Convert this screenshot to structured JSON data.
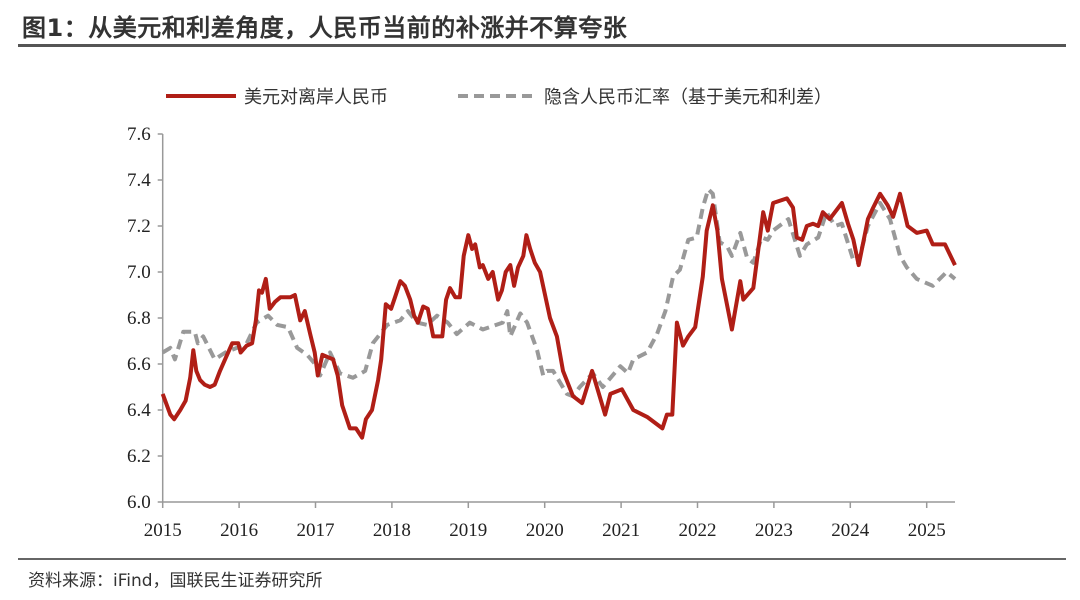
{
  "header": {
    "title": "图1：从美元和利差角度，人民币当前的补涨并不算夸张"
  },
  "footer": {
    "source": "资料来源：iFind，国联民生证券研究所"
  },
  "chart_data": {
    "type": "line",
    "title": "",
    "xlabel": "",
    "ylabel": "",
    "xlim": [
      2015,
      2025.4
    ],
    "ylim": [
      6.0,
      7.6
    ],
    "x_ticks": [
      "2015",
      "2016",
      "2017",
      "2018",
      "2019",
      "2020",
      "2021",
      "2022",
      "2023",
      "2024",
      "2025"
    ],
    "y_ticks": [
      "6.0",
      "6.2",
      "6.4",
      "6.6",
      "6.8",
      "7.0",
      "7.2",
      "7.4",
      "7.6"
    ],
    "grid": false,
    "legend_position": "top",
    "series": [
      {
        "name": "美元对离岸人民币",
        "color": "#b01e16",
        "style": "solid",
        "x": [
          2015.0,
          2015.1,
          2015.15,
          2015.23,
          2015.3,
          2015.36,
          2015.4,
          2015.44,
          2015.49,
          2015.55,
          2015.62,
          2015.68,
          2015.75,
          2015.83,
          2015.91,
          2015.99,
          2016.02,
          2016.1,
          2016.17,
          2016.22,
          2016.26,
          2016.3,
          2016.35,
          2016.4,
          2016.47,
          2016.54,
          2016.67,
          2016.73,
          2016.8,
          2016.86,
          2016.93,
          2016.99,
          2017.03,
          2017.09,
          2017.16,
          2017.23,
          2017.29,
          2017.35,
          2017.45,
          2017.53,
          2017.61,
          2017.66,
          2017.74,
          2017.82,
          2017.86,
          2017.92,
          2017.99,
          2018.04,
          2018.11,
          2018.17,
          2018.24,
          2018.29,
          2018.34,
          2018.41,
          2018.47,
          2018.54,
          2018.59,
          2018.66,
          2018.71,
          2018.76,
          2018.83,
          2018.89,
          2018.94,
          2019.0,
          2019.05,
          2019.09,
          2019.15,
          2019.19,
          2019.26,
          2019.32,
          2019.39,
          2019.44,
          2019.49,
          2019.55,
          2019.6,
          2019.65,
          2019.72,
          2019.76,
          2019.81,
          2019.87,
          2019.94,
          2020.07,
          2020.16,
          2020.24,
          2020.37,
          2020.49,
          2020.62,
          2020.79,
          2020.86,
          2021.01,
          2021.16,
          2021.34,
          2021.54,
          2021.6,
          2021.67,
          2021.73,
          2021.81,
          2021.88,
          2021.97,
          2022.07,
          2022.12,
          2022.2,
          2022.26,
          2022.32,
          2022.45,
          2022.56,
          2022.6,
          2022.73,
          2022.86,
          2022.92,
          2022.99,
          2023.17,
          2023.25,
          2023.3,
          2023.37,
          2023.43,
          2023.51,
          2023.58,
          2023.64,
          2023.73,
          2023.89,
          2023.97,
          2024.04,
          2024.11,
          2024.23,
          2024.3,
          2024.39,
          2024.49,
          2024.56,
          2024.65,
          2024.75,
          2024.87,
          2025.0,
          2025.08,
          2025.24,
          2025.37
        ],
        "values": [
          6.47,
          6.38,
          6.36,
          6.4,
          6.44,
          6.54,
          6.66,
          6.57,
          6.53,
          6.51,
          6.5,
          6.51,
          6.57,
          6.63,
          6.69,
          6.69,
          6.65,
          6.68,
          6.69,
          6.79,
          6.92,
          6.91,
          6.97,
          6.84,
          6.87,
          6.89,
          6.89,
          6.9,
          6.79,
          6.83,
          6.73,
          6.65,
          6.55,
          6.64,
          6.63,
          6.62,
          6.55,
          6.42,
          6.32,
          6.32,
          6.28,
          6.36,
          6.4,
          6.53,
          6.62,
          6.86,
          6.84,
          6.89,
          6.96,
          6.94,
          6.88,
          6.81,
          6.78,
          6.85,
          6.84,
          6.72,
          6.72,
          6.72,
          6.88,
          6.93,
          6.89,
          6.89,
          7.07,
          7.16,
          7.1,
          7.12,
          7.02,
          7.03,
          6.97,
          7.0,
          6.88,
          6.92,
          7.0,
          7.03,
          6.94,
          7.02,
          7.07,
          7.16,
          7.1,
          7.04,
          7.0,
          6.8,
          6.72,
          6.57,
          6.46,
          6.43,
          6.57,
          6.38,
          6.47,
          6.49,
          6.4,
          6.37,
          6.32,
          6.38,
          6.38,
          6.78,
          6.68,
          6.72,
          6.76,
          6.98,
          7.18,
          7.29,
          7.18,
          6.97,
          6.75,
          6.96,
          6.88,
          6.93,
          7.26,
          7.18,
          7.3,
          7.32,
          7.28,
          7.15,
          7.14,
          7.2,
          7.21,
          7.2,
          7.26,
          7.23,
          7.3,
          7.21,
          7.14,
          7.03,
          7.23,
          7.28,
          7.34,
          7.29,
          7.24,
          7.34,
          7.2,
          7.17,
          7.18,
          7.12,
          7.12,
          7.03
        ]
      },
      {
        "name": "隐含人民币汇率（基于美元和利差）",
        "color": "#999999",
        "style": "dashed",
        "x": [
          2015.0,
          2015.1,
          2015.16,
          2015.27,
          2015.42,
          2015.46,
          2015.53,
          2015.68,
          2015.82,
          2015.97,
          2016.1,
          2016.23,
          2016.38,
          2016.5,
          2016.64,
          2016.76,
          2016.89,
          2017.02,
          2017.06,
          2017.19,
          2017.32,
          2017.49,
          2017.65,
          2017.75,
          2017.94,
          2018.11,
          2018.21,
          2018.33,
          2018.46,
          2018.59,
          2018.73,
          2018.85,
          2019.02,
          2019.19,
          2019.45,
          2019.51,
          2019.55,
          2019.68,
          2019.77,
          2019.9,
          2019.98,
          2020.03,
          2020.11,
          2020.29,
          2020.37,
          2020.46,
          2020.63,
          2020.76,
          2020.99,
          2021.09,
          2021.16,
          2021.34,
          2021.47,
          2021.58,
          2021.68,
          2021.77,
          2021.88,
          2021.99,
          2022.07,
          2022.14,
          2022.2,
          2022.29,
          2022.39,
          2022.45,
          2022.56,
          2022.65,
          2022.73,
          2022.84,
          2022.92,
          2022.99,
          2023.19,
          2023.34,
          2023.43,
          2023.58,
          2023.69,
          2023.8,
          2023.89,
          2024.04,
          2024.1,
          2024.23,
          2024.39,
          2024.52,
          2024.65,
          2024.74,
          2024.87,
          2025.08,
          2025.26,
          2025.37
        ],
        "values": [
          6.65,
          6.67,
          6.62,
          6.74,
          6.74,
          6.69,
          6.72,
          6.62,
          6.65,
          6.67,
          6.69,
          6.78,
          6.81,
          6.77,
          6.76,
          6.67,
          6.64,
          6.59,
          6.55,
          6.65,
          6.56,
          6.54,
          6.57,
          6.69,
          6.77,
          6.79,
          6.83,
          6.78,
          6.77,
          6.81,
          6.78,
          6.73,
          6.78,
          6.75,
          6.78,
          6.83,
          6.72,
          6.82,
          6.78,
          6.66,
          6.55,
          6.57,
          6.57,
          6.47,
          6.46,
          6.5,
          6.56,
          6.5,
          6.59,
          6.56,
          6.62,
          6.65,
          6.73,
          6.83,
          6.98,
          7.01,
          7.14,
          7.15,
          7.28,
          7.36,
          7.34,
          7.13,
          7.11,
          7.07,
          7.17,
          7.06,
          7.04,
          7.15,
          7.14,
          7.18,
          7.23,
          7.07,
          7.12,
          7.15,
          7.26,
          7.2,
          7.21,
          7.05,
          7.04,
          7.2,
          7.3,
          7.23,
          7.07,
          7.02,
          6.97,
          6.94,
          7.0,
          6.97
        ]
      }
    ]
  }
}
